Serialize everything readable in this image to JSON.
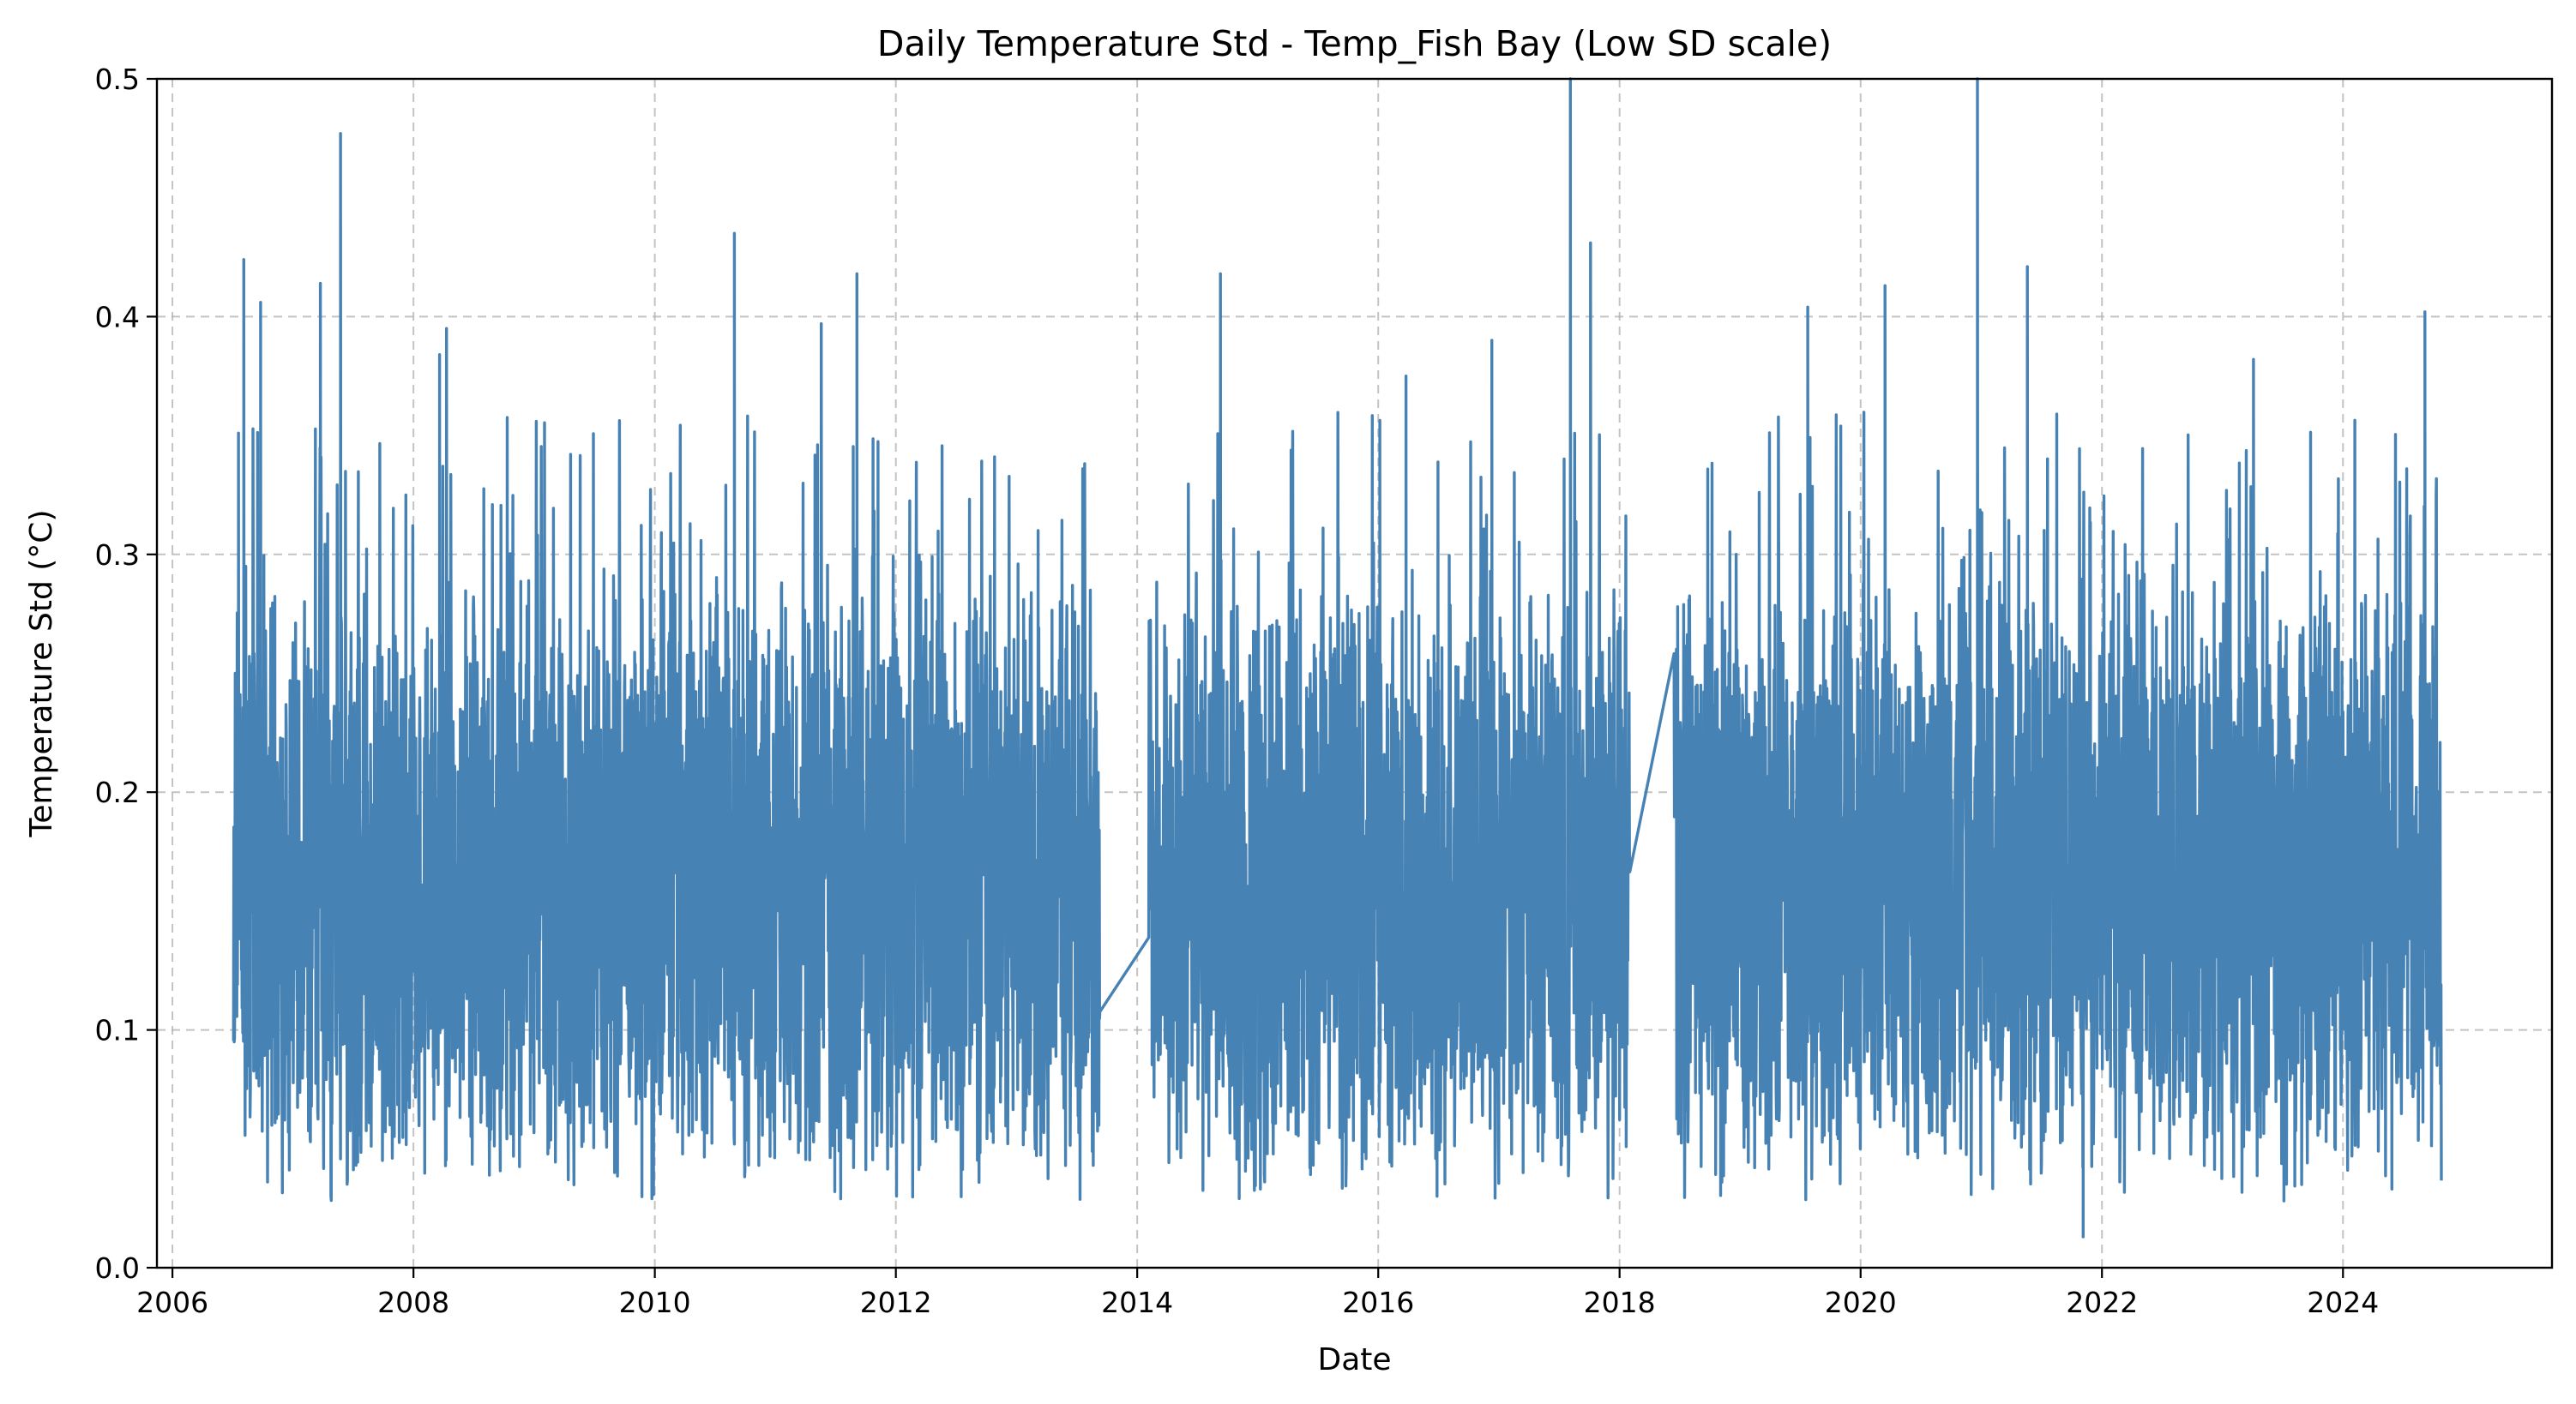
{
  "chart_data": {
    "type": "line",
    "title": "Daily Temperature Std - Temp_Fish Bay (Low SD scale)",
    "xlabel": "Date",
    "ylabel": "Temperature Std (°C)",
    "xlim": [
      "2005-11-15",
      "2025-09-25"
    ],
    "ylim": [
      0,
      0.5
    ],
    "x_ticks": [
      "2006",
      "2008",
      "2010",
      "2012",
      "2014",
      "2016",
      "2018",
      "2020",
      "2022",
      "2024"
    ],
    "y_ticks": [
      "0.0",
      "0.1",
      "0.2",
      "0.3",
      "0.4",
      "0.5"
    ],
    "grid": true,
    "legend": "none",
    "series": [
      {
        "color": "#4682b4",
        "x_start": "2006-07-05",
        "x_end": "2024-10-25",
        "typical_range": [
          0.05,
          0.28
        ],
        "typical_mean": 0.16,
        "gaps": [
          {
            "from": "2013-09-10",
            "to": "2014-02-05"
          },
          {
            "from": "2018-02-01",
            "to": "2018-06-15"
          }
        ],
        "notable_points": [
          {
            "x": "2006-07-20",
            "y": 0.351
          },
          {
            "x": "2006-08-05",
            "y": 0.424
          },
          {
            "x": "2006-09-25",
            "y": 0.406
          },
          {
            "x": "2007-03-25",
            "y": 0.414
          },
          {
            "x": "2007-05-25",
            "y": 0.477
          },
          {
            "x": "2008-03-20",
            "y": 0.384
          },
          {
            "x": "2008-04-10",
            "y": 0.395
          },
          {
            "x": "2010-08-30",
            "y": 0.435
          },
          {
            "x": "2011-05-20",
            "y": 0.397
          },
          {
            "x": "2011-09-05",
            "y": 0.418
          },
          {
            "x": "2013-07-20",
            "y": 0.336
          },
          {
            "x": "2014-09-10",
            "y": 0.418
          },
          {
            "x": "2016-03-25",
            "y": 0.375
          },
          {
            "x": "2016-12-10",
            "y": 0.39
          },
          {
            "x": "2017-08-05",
            "y": 0.5
          },
          {
            "x": "2017-10-05",
            "y": 0.431
          },
          {
            "x": "2019-07-25",
            "y": 0.404
          },
          {
            "x": "2020-03-15",
            "y": 0.413
          },
          {
            "x": "2020-12-20",
            "y": 0.5
          },
          {
            "x": "2021-05-20",
            "y": 0.421
          },
          {
            "x": "2021-11-05",
            "y": 0.013
          },
          {
            "x": "2023-04-05",
            "y": 0.382
          },
          {
            "x": "2024-09-05",
            "y": 0.402
          }
        ]
      }
    ]
  }
}
